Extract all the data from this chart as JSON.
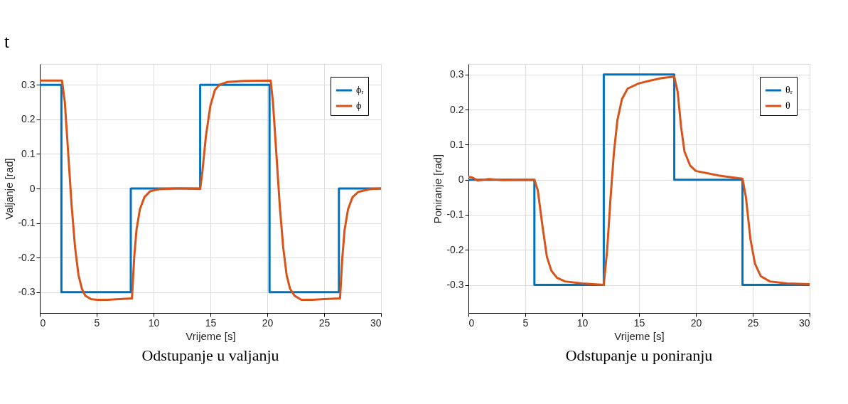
{
  "chart_data": [
    {
      "type": "line",
      "title": "Odstupanje u valjanju",
      "xlabel": "Vrijeme [s]",
      "ylabel": "Valjanje [rad]",
      "annotations": [
        "t"
      ],
      "xlim": [
        0,
        30
      ],
      "ylim": [
        -0.36,
        0.36
      ],
      "xticks": [
        0,
        5,
        10,
        15,
        20,
        25,
        30
      ],
      "yticks": [
        -0.3,
        -0.2,
        -0.1,
        0,
        0.1,
        0.2,
        0.3
      ],
      "grid": true,
      "legend": "top right",
      "marker": "none",
      "line_style": "solid",
      "series": [
        {
          "name": "ϕᵣ",
          "color": "#0072bd",
          "x": [
            0,
            1.9,
            1.9,
            8,
            8,
            14.1,
            14.1,
            20.2,
            20.2,
            26.3,
            26.3,
            30
          ],
          "values": [
            0.3,
            0.3,
            -0.3,
            -0.3,
            0,
            0,
            0.3,
            0.3,
            -0.3,
            -0.3,
            0,
            0
          ]
        },
        {
          "name": "ϕ",
          "color": "#d95319",
          "x": [
            0,
            1.95,
            2.2,
            2.5,
            2.8,
            3.1,
            3.4,
            3.7,
            4.0,
            4.5,
            5,
            6,
            7,
            8.1,
            8.3,
            8.5,
            8.8,
            9.2,
            9.7,
            10.5,
            12,
            14.1,
            14.3,
            14.6,
            15.0,
            15.4,
            15.8,
            16.5,
            18,
            20.3,
            20.5,
            20.8,
            21.1,
            21.4,
            21.7,
            22,
            22.4,
            23,
            24,
            25,
            26.4,
            26.6,
            26.8,
            27.1,
            27.5,
            28,
            29,
            30
          ],
          "values": [
            0.312,
            0.312,
            0.25,
            0.1,
            -0.05,
            -0.17,
            -0.25,
            -0.29,
            -0.31,
            -0.32,
            -0.322,
            -0.322,
            -0.32,
            -0.318,
            -0.2,
            -0.12,
            -0.06,
            -0.025,
            -0.008,
            -0.002,
            0,
            -0.001,
            0.05,
            0.15,
            0.24,
            0.285,
            0.3,
            0.308,
            0.311,
            0.312,
            0.25,
            0.1,
            -0.05,
            -0.17,
            -0.25,
            -0.29,
            -0.31,
            -0.322,
            -0.322,
            -0.32,
            -0.318,
            -0.2,
            -0.12,
            -0.06,
            -0.025,
            -0.01,
            -0.002,
            0
          ]
        }
      ]
    },
    {
      "type": "line",
      "title": "Odstupanje u poniranju",
      "xlabel": "Vrijeme [s]",
      "ylabel": "Poniranje [rad]",
      "xlim": [
        0,
        30
      ],
      "ylim": [
        -0.38,
        0.33
      ],
      "xticks": [
        0,
        5,
        10,
        15,
        20,
        25,
        30
      ],
      "yticks": [
        -0.3,
        -0.2,
        -0.1,
        0,
        0.1,
        0.2,
        0.3
      ],
      "grid": true,
      "legend": "top right",
      "marker": "none",
      "line_style": "solid",
      "series": [
        {
          "name": "θᵣ",
          "color": "#0072bd",
          "x": [
            0,
            5.8,
            5.8,
            11.9,
            11.9,
            18.1,
            18.1,
            24.1,
            24.1,
            30
          ],
          "values": [
            0,
            0,
            -0.3,
            -0.3,
            0.3,
            0.3,
            0,
            0,
            -0.3,
            -0.3
          ]
        },
        {
          "name": "θ",
          "color": "#d95319",
          "x": [
            0,
            0.3,
            0.8,
            1.8,
            3,
            5.8,
            6.1,
            6.5,
            6.9,
            7.3,
            7.8,
            8.5,
            10,
            11.9,
            12.2,
            12.5,
            12.8,
            13.1,
            13.5,
            14,
            15,
            16,
            17,
            18.1,
            18.4,
            18.7,
            19,
            19.5,
            20,
            22,
            24.1,
            24.4,
            24.8,
            25.2,
            25.7,
            26.5,
            28,
            30
          ],
          "values": [
            0.008,
            0.007,
            -0.002,
            0.002,
            -0.001,
            0,
            -0.03,
            -0.13,
            -0.22,
            -0.26,
            -0.28,
            -0.29,
            -0.296,
            -0.3,
            -0.2,
            -0.05,
            0.08,
            0.17,
            0.23,
            0.26,
            0.275,
            0.283,
            0.29,
            0.294,
            0.25,
            0.15,
            0.08,
            0.04,
            0.025,
            0.012,
            0.003,
            -0.05,
            -0.17,
            -0.24,
            -0.275,
            -0.29,
            -0.296,
            -0.298
          ]
        }
      ]
    }
  ]
}
